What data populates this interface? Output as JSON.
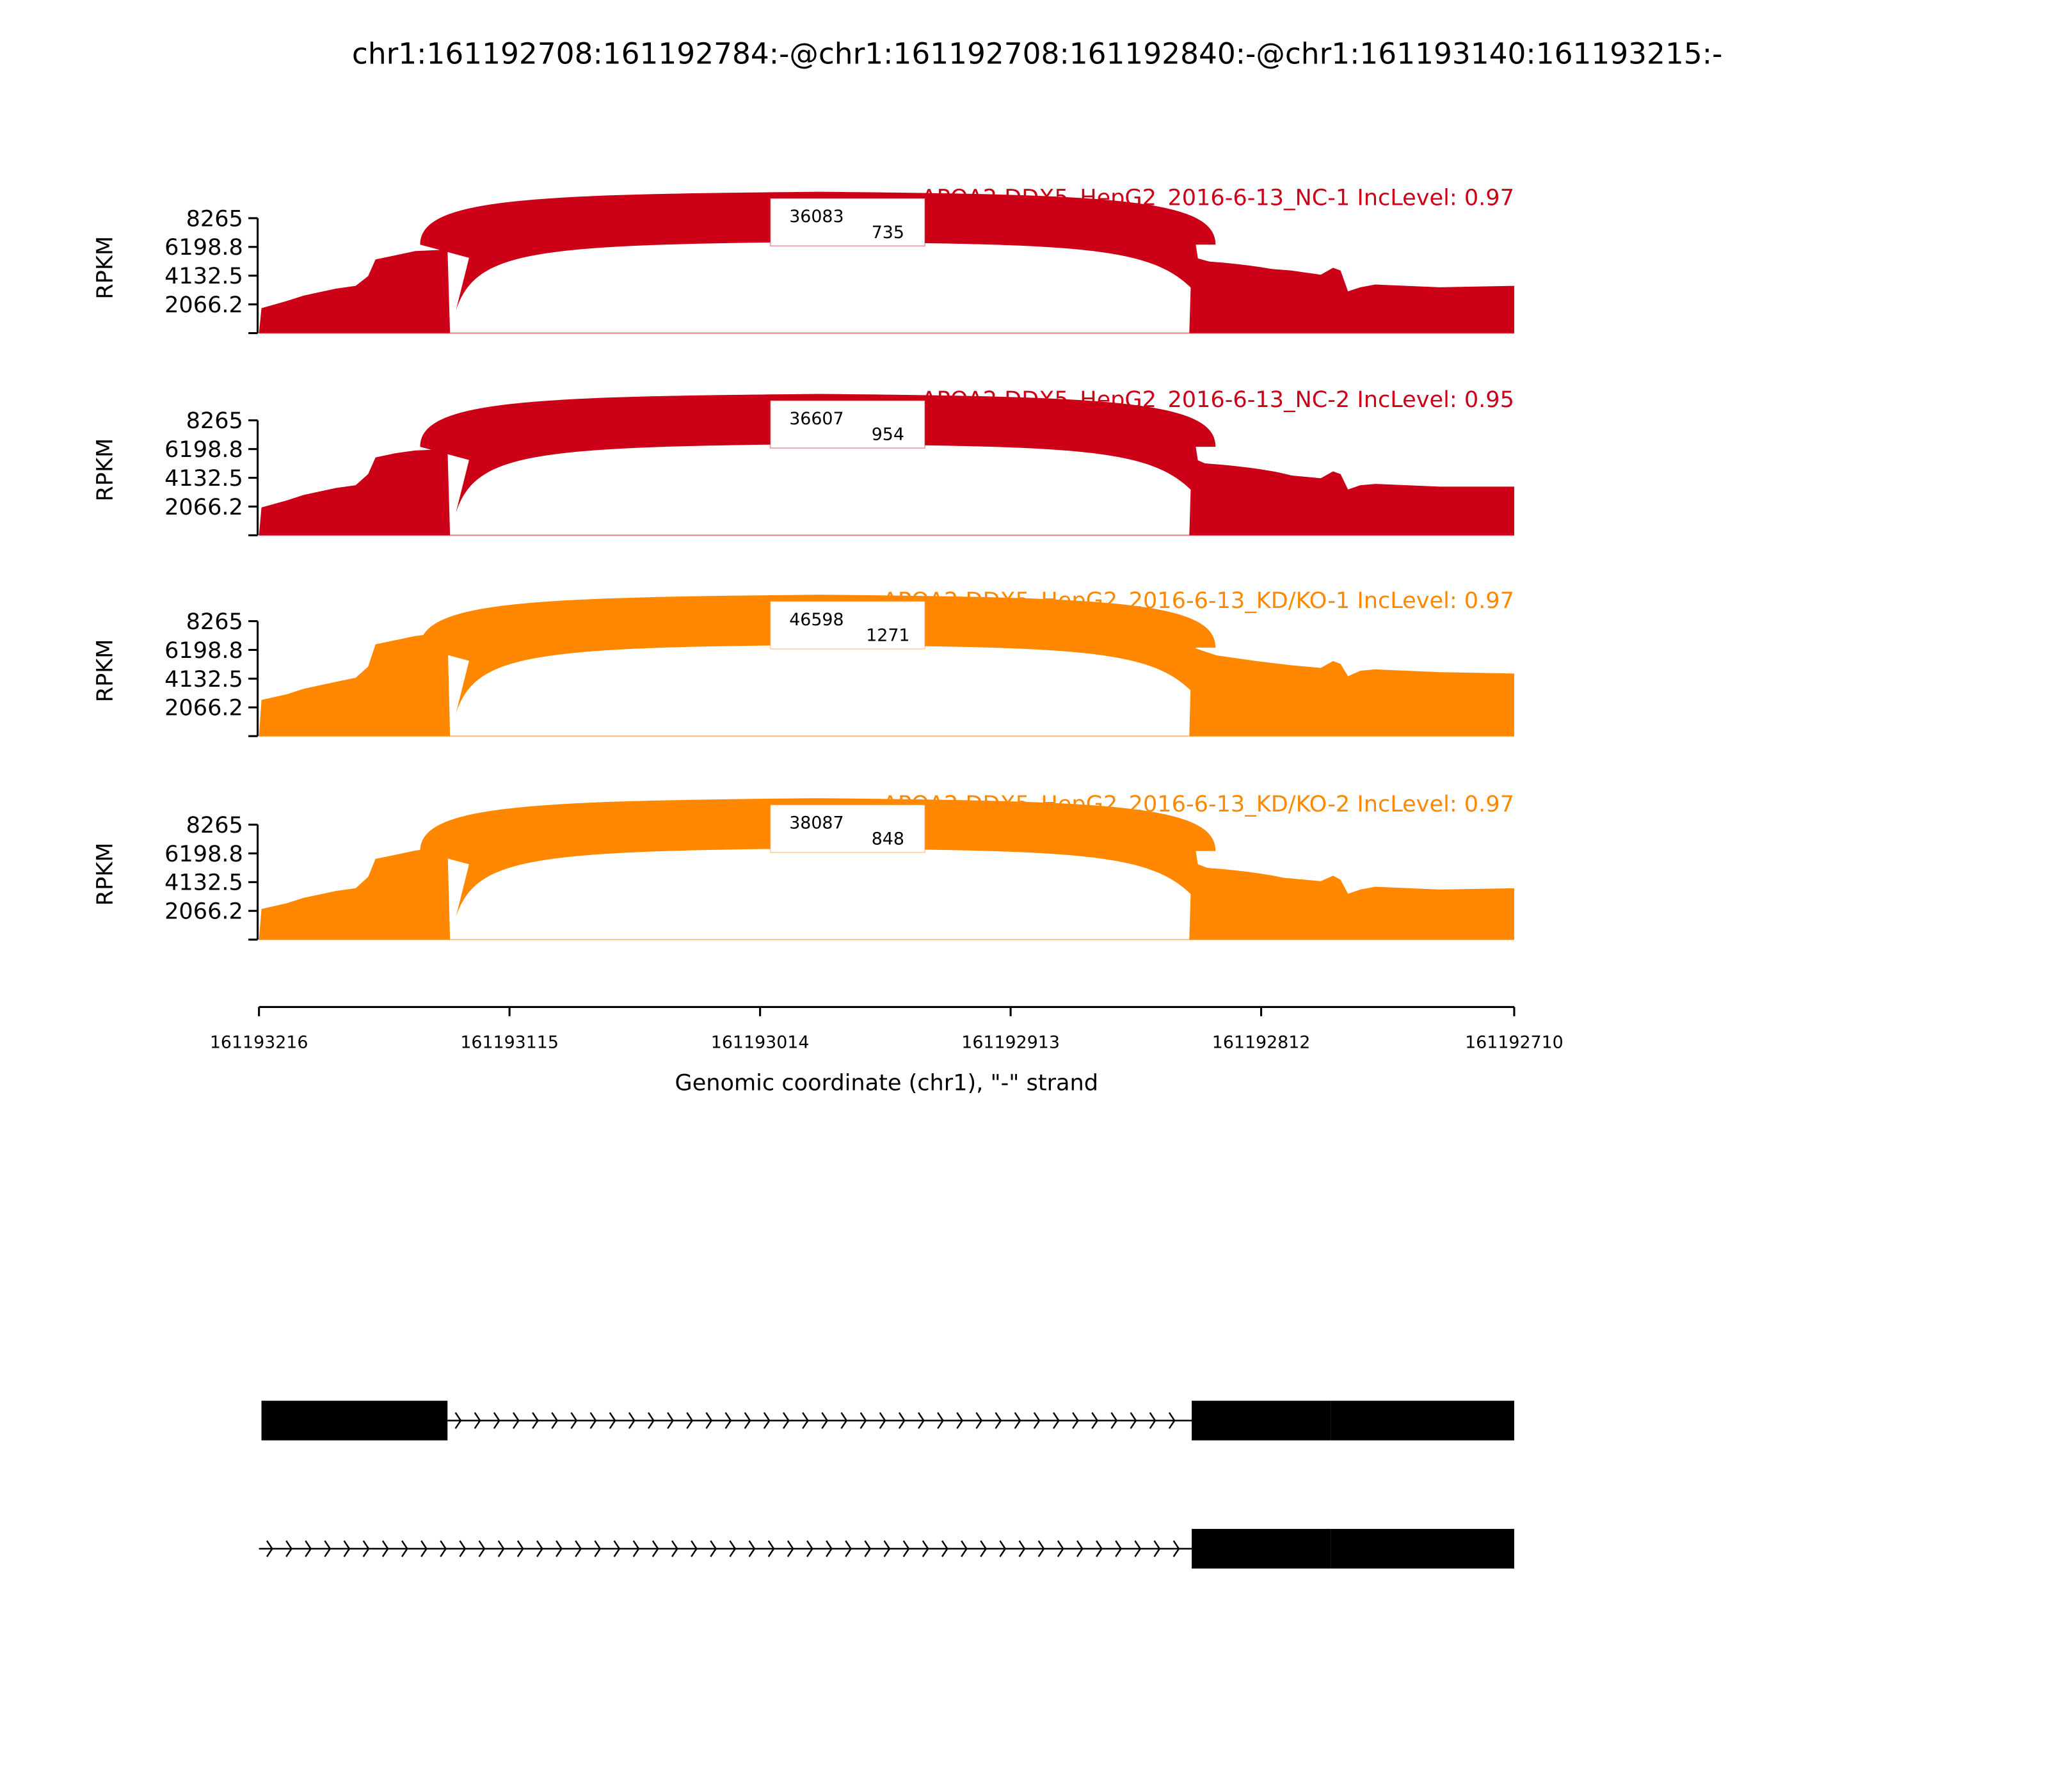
{
  "chart_data": {
    "type": "area",
    "title": "chr1:161192708:161192784:-@chr1:161192708:161192840:-@chr1:161193140:161193215:-",
    "xlabel": "Genomic coordinate (chr1), \"-\" strand",
    "xlim": [
      161193216,
      161192710
    ],
    "xticks": [
      "161193216",
      "161193115",
      "161193014",
      "161192913",
      "161192812",
      "161192710"
    ],
    "xtick_values": [
      161193216,
      161193115,
      161193014,
      161192913,
      161192812,
      161192710
    ],
    "ylabel": "RPKM",
    "ylim": [
      0,
      8265
    ],
    "yticks": [
      "8265",
      "6198.8",
      "4132.5",
      "2066.2"
    ],
    "ytick_values": [
      8265,
      6198.8,
      4132.5,
      2066.2
    ],
    "grid": false,
    "panels": [
      {
        "title": "APOA2 DDX5_HepG2_2016-6-13_NC-1 IncLevel: 0.97",
        "color": "#cc0016",
        "junction_labels": [
          "36083",
          "735"
        ],
        "junctions": [
          {
            "start": 161193140,
            "end": 161192840,
            "count": 36083
          },
          {
            "start": 161193140,
            "end": 161192784,
            "count": 735
          }
        ],
        "coverage": [
          [
            161193216,
            0
          ],
          [
            161193215,
            1800
          ],
          [
            161193205,
            2300
          ],
          [
            161193198,
            2700
          ],
          [
            161193185,
            3200
          ],
          [
            161193177,
            3400
          ],
          [
            161193172,
            4100
          ],
          [
            161193169,
            5300
          ],
          [
            161193161,
            5600
          ],
          [
            161193153,
            5900
          ],
          [
            161193140,
            6000
          ],
          [
            161193139,
            0
          ],
          [
            161192841,
            0
          ],
          [
            161192840,
            5500
          ],
          [
            161192830,
            5000
          ],
          [
            161192814,
            4700
          ],
          [
            161192800,
            4500
          ],
          [
            161192788,
            4200
          ],
          [
            161192783,
            4700
          ],
          [
            161192780,
            4500
          ],
          [
            161192777,
            3000
          ],
          [
            161192772,
            3300
          ],
          [
            161192766,
            3500
          ],
          [
            161192740,
            3300
          ],
          [
            161192710,
            3400
          ]
        ]
      },
      {
        "title": "APOA2 DDX5_HepG2_2016-6-13_NC-2 IncLevel: 0.95",
        "color": "#cc0016",
        "junction_labels": [
          "36607",
          "954"
        ],
        "junctions": [
          {
            "start": 161193140,
            "end": 161192840,
            "count": 36607
          },
          {
            "start": 161193140,
            "end": 161192784,
            "count": 954
          }
        ],
        "coverage": [
          [
            161193216,
            0
          ],
          [
            161193215,
            2000
          ],
          [
            161193205,
            2500
          ],
          [
            161193198,
            2900
          ],
          [
            161193185,
            3400
          ],
          [
            161193177,
            3600
          ],
          [
            161193172,
            4400
          ],
          [
            161193169,
            5600
          ],
          [
            161193161,
            5900
          ],
          [
            161193153,
            6100
          ],
          [
            161193140,
            6200
          ],
          [
            161193139,
            0
          ],
          [
            161192841,
            0
          ],
          [
            161192840,
            5600
          ],
          [
            161192830,
            4800
          ],
          [
            161192814,
            4500
          ],
          [
            161192800,
            4300
          ],
          [
            161192788,
            4100
          ],
          [
            161192783,
            4600
          ],
          [
            161192780,
            4400
          ],
          [
            161192777,
            3300
          ],
          [
            161192772,
            3600
          ],
          [
            161192766,
            3700
          ],
          [
            161192740,
            3500
          ],
          [
            161192710,
            3500
          ]
        ]
      },
      {
        "title": "APOA2 DDX5_HepG2_2016-6-13_KD/KO-1 IncLevel: 0.97",
        "color": "#ff8800",
        "junction_labels": [
          "46598",
          "1271"
        ],
        "junctions": [
          {
            "start": 161193140,
            "end": 161192840,
            "count": 46598
          },
          {
            "start": 161193140,
            "end": 161192784,
            "count": 1271
          }
        ],
        "coverage": [
          [
            161193216,
            0
          ],
          [
            161193215,
            2600
          ],
          [
            161193205,
            3000
          ],
          [
            161193198,
            3400
          ],
          [
            161193185,
            3900
          ],
          [
            161193177,
            4200
          ],
          [
            161193172,
            5000
          ],
          [
            161193169,
            6600
          ],
          [
            161193161,
            6900
          ],
          [
            161193153,
            7200
          ],
          [
            161193140,
            7500
          ],
          [
            161193139,
            0
          ],
          [
            161192841,
            0
          ],
          [
            161192840,
            6400
          ],
          [
            161192830,
            5800
          ],
          [
            161192814,
            5400
          ],
          [
            161192800,
            5100
          ],
          [
            161192788,
            4900
          ],
          [
            161192783,
            5400
          ],
          [
            161192780,
            5200
          ],
          [
            161192777,
            4300
          ],
          [
            161192772,
            4700
          ],
          [
            161192766,
            4800
          ],
          [
            161192740,
            4600
          ],
          [
            161192710,
            4500
          ]
        ]
      },
      {
        "title": "APOA2 DDX5_HepG2_2016-6-13_KD/KO-2 IncLevel: 0.97",
        "color": "#ff8800",
        "junction_labels": [
          "38087",
          "848"
        ],
        "junctions": [
          {
            "start": 161193140,
            "end": 161192840,
            "count": 38087
          },
          {
            "start": 161193140,
            "end": 161192784,
            "count": 848
          }
        ],
        "coverage": [
          [
            161193216,
            0
          ],
          [
            161193215,
            2200
          ],
          [
            161193205,
            2600
          ],
          [
            161193198,
            3000
          ],
          [
            161193185,
            3500
          ],
          [
            161193177,
            3700
          ],
          [
            161193172,
            4500
          ],
          [
            161193169,
            5800
          ],
          [
            161193161,
            6100
          ],
          [
            161193153,
            6400
          ],
          [
            161193140,
            6700
          ],
          [
            161193139,
            0
          ],
          [
            161192841,
            0
          ],
          [
            161192840,
            5600
          ],
          [
            161192830,
            4900
          ],
          [
            161192814,
            4600
          ],
          [
            161192800,
            4400
          ],
          [
            161192788,
            4200
          ],
          [
            161192783,
            4600
          ],
          [
            161192780,
            4300
          ],
          [
            161192777,
            3300
          ],
          [
            161192772,
            3600
          ],
          [
            161192766,
            3800
          ],
          [
            161192740,
            3600
          ],
          [
            161192710,
            3700
          ]
        ]
      }
    ],
    "gene_models": [
      {
        "exons": [
          [
            161193215,
            161193140
          ],
          [
            161192840,
            161192784
          ],
          [
            161192784,
            161192710
          ]
        ],
        "strand_arrow": "chevron-right"
      },
      {
        "exons": [
          [
            161192840,
            161192784
          ],
          [
            161192784,
            161192710
          ]
        ],
        "strand_arrow": "chevron-right"
      }
    ]
  }
}
